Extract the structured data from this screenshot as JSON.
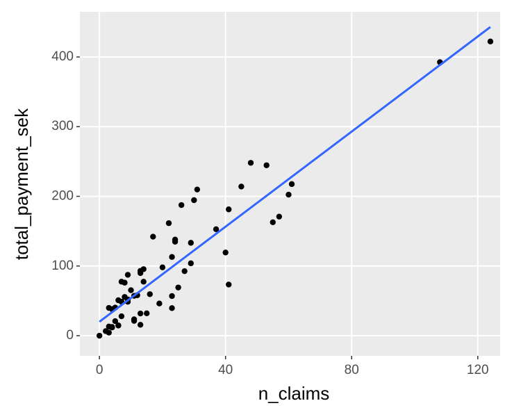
{
  "chart_data": {
    "type": "scatter",
    "x_label": "n_claims",
    "y_label": "total_payment_sek",
    "x": [
      108,
      19,
      13,
      124,
      40,
      57,
      23,
      14,
      45,
      10,
      5,
      48,
      11,
      23,
      7,
      2,
      24,
      6,
      3,
      23,
      6,
      9,
      9,
      3,
      29,
      7,
      4,
      20,
      7,
      4,
      0,
      25,
      6,
      5,
      22,
      11,
      61,
      12,
      4,
      16,
      13,
      60,
      41,
      37,
      55,
      41,
      11,
      27,
      8,
      3,
      17,
      13,
      13,
      15,
      8,
      29,
      30,
      24,
      9,
      31,
      14,
      53,
      26
    ],
    "values": [
      392.5,
      46.2,
      15.7,
      422.2,
      119.4,
      170.9,
      56.9,
      77.5,
      214,
      65.3,
      20.9,
      248.1,
      23.5,
      39.6,
      48.8,
      6.6,
      134.9,
      50.9,
      4.4,
      113,
      14.8,
      48.7,
      52.1,
      13.2,
      103.9,
      77.5,
      11.8,
      98.1,
      27.9,
      38.1,
      0,
      69.2,
      14.6,
      40.3,
      161.5,
      57.2,
      217.6,
      58.1,
      12.6,
      59.6,
      89.9,
      202.4,
      181.3,
      152.8,
      162.8,
      73.4,
      21.3,
      92.6,
      76.1,
      39.9,
      142.1,
      93,
      31.9,
      32.1,
      55.6,
      133.3,
      194.5,
      137.9,
      87.4,
      209.8,
      95.5,
      244.6,
      187.5
    ],
    "color": "#000000",
    "fit": {
      "x": [
        0,
        124
      ],
      "values": [
        20,
        443
      ],
      "color": "#3366ff"
    },
    "xlim": [
      -6.2,
      127.1
    ],
    "xticks": [
      0,
      40,
      80,
      120
    ],
    "ylim": [
      -28.9,
      464.8
    ],
    "yticks": [
      0,
      100,
      200,
      300,
      400
    ],
    "grid": true
  }
}
